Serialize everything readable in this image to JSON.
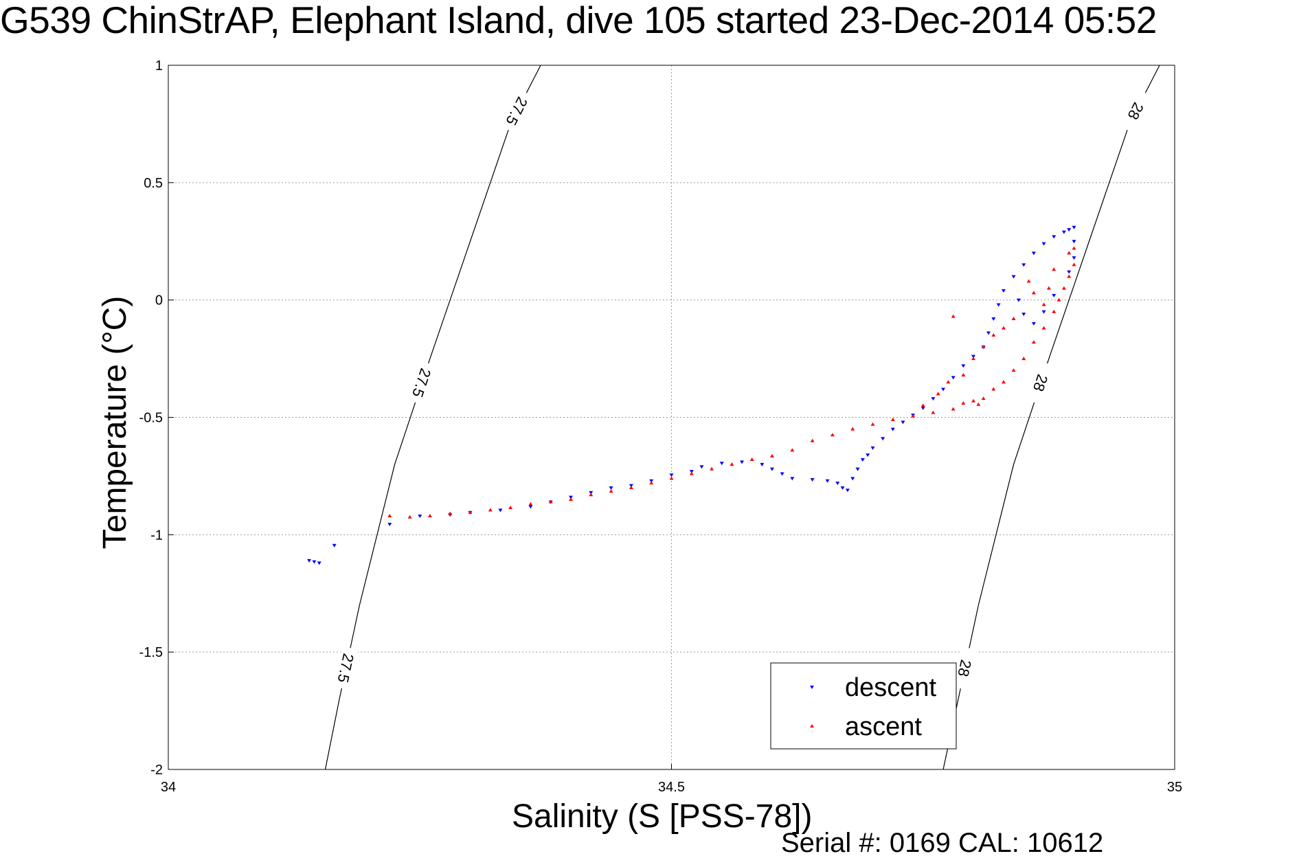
{
  "chart_data": {
    "type": "scatter",
    "title": "G539 ChinStrAP, Elephant Island, dive 105 started 23-Dec-2014 05:52",
    "xlabel": "Salinity (S [PSS-78])",
    "ylabel": "Temperature (°C)",
    "footer": "Serial #: 0169 CAL: 10612",
    "xlim": [
      34,
      35
    ],
    "ylim": [
      -2,
      1
    ],
    "xticks": [
      34,
      34.5,
      35
    ],
    "xtick_labels": [
      "34",
      "34.5",
      "35"
    ],
    "yticks": [
      1,
      0.5,
      0,
      -0.5,
      -1,
      -1.5,
      -2
    ],
    "ytick_labels": [
      "1",
      "0.5",
      "0",
      "-0.5",
      "-1",
      "-1.5",
      "-2"
    ],
    "grid": true,
    "legend_position": "bottom-right",
    "contours": [
      {
        "label": "27.5",
        "points": [
          [
            34.156,
            -2.0
          ],
          [
            34.17,
            -1.7
          ],
          [
            34.19,
            -1.3
          ],
          [
            34.225,
            -0.7
          ],
          [
            34.26,
            -0.25
          ],
          [
            34.3,
            0.25
          ],
          [
            34.34,
            0.75
          ],
          [
            34.37,
            1.0
          ]
        ]
      },
      {
        "label": "28",
        "points": [
          [
            34.77,
            -2.0
          ],
          [
            34.785,
            -1.7
          ],
          [
            34.805,
            -1.3
          ],
          [
            34.84,
            -0.7
          ],
          [
            34.875,
            -0.25
          ],
          [
            34.915,
            0.25
          ],
          [
            34.955,
            0.75
          ],
          [
            34.985,
            1.0
          ]
        ]
      }
    ],
    "contour_label_values": [
      "27.5",
      "27.5",
      "27.5",
      "28",
      "28",
      "28"
    ],
    "series": [
      {
        "name": "descent",
        "color": "#0000ff",
        "marker": "triangle-down",
        "points": [
          [
            34.14,
            -1.11
          ],
          [
            34.145,
            -1.115
          ],
          [
            34.15,
            -1.12
          ],
          [
            34.165,
            -1.045
          ],
          [
            34.22,
            -0.955
          ],
          [
            34.25,
            -0.92
          ],
          [
            34.28,
            -0.915
          ],
          [
            34.3,
            -0.905
          ],
          [
            34.33,
            -0.895
          ],
          [
            34.36,
            -0.88
          ],
          [
            34.38,
            -0.86
          ],
          [
            34.4,
            -0.84
          ],
          [
            34.42,
            -0.82
          ],
          [
            34.44,
            -0.8
          ],
          [
            34.46,
            -0.79
          ],
          [
            34.48,
            -0.77
          ],
          [
            34.5,
            -0.745
          ],
          [
            34.52,
            -0.73
          ],
          [
            34.53,
            -0.71
          ],
          [
            34.55,
            -0.695
          ],
          [
            34.57,
            -0.69
          ],
          [
            34.59,
            -0.7
          ],
          [
            34.6,
            -0.72
          ],
          [
            34.61,
            -0.74
          ],
          [
            34.62,
            -0.76
          ],
          [
            34.64,
            -0.765
          ],
          [
            34.655,
            -0.77
          ],
          [
            34.665,
            -0.78
          ],
          [
            34.67,
            -0.8
          ],
          [
            34.675,
            -0.81
          ],
          [
            34.68,
            -0.76
          ],
          [
            34.685,
            -0.72
          ],
          [
            34.69,
            -0.68
          ],
          [
            34.695,
            -0.66
          ],
          [
            34.7,
            -0.63
          ],
          [
            34.71,
            -0.59
          ],
          [
            34.72,
            -0.55
          ],
          [
            34.73,
            -0.52
          ],
          [
            34.74,
            -0.49
          ],
          [
            34.75,
            -0.46
          ],
          [
            34.76,
            -0.42
          ],
          [
            34.77,
            -0.38
          ],
          [
            34.78,
            -0.33
          ],
          [
            34.79,
            -0.28
          ],
          [
            34.8,
            -0.24
          ],
          [
            34.81,
            -0.2
          ],
          [
            34.815,
            -0.14
          ],
          [
            34.82,
            -0.08
          ],
          [
            34.825,
            -0.02
          ],
          [
            34.83,
            0.04
          ],
          [
            34.84,
            0.1
          ],
          [
            34.85,
            0.15
          ],
          [
            34.86,
            0.2
          ],
          [
            34.87,
            0.24
          ],
          [
            34.88,
            0.27
          ],
          [
            34.89,
            0.29
          ],
          [
            34.895,
            0.3
          ],
          [
            34.9,
            0.31
          ],
          [
            34.9,
            0.25
          ],
          [
            34.9,
            0.18
          ],
          [
            34.895,
            0.12
          ],
          [
            34.88,
            0.02
          ],
          [
            34.87,
            -0.05
          ],
          [
            34.86,
            -0.1
          ],
          [
            34.85,
            -0.06
          ],
          [
            34.845,
            0.0
          ]
        ]
      },
      {
        "name": "ascent",
        "color": "#ff0000",
        "marker": "triangle-up",
        "points": [
          [
            34.22,
            -0.92
          ],
          [
            34.24,
            -0.925
          ],
          [
            34.26,
            -0.92
          ],
          [
            34.28,
            -0.91
          ],
          [
            34.3,
            -0.905
          ],
          [
            34.32,
            -0.895
          ],
          [
            34.34,
            -0.885
          ],
          [
            34.36,
            -0.87
          ],
          [
            34.38,
            -0.86
          ],
          [
            34.4,
            -0.85
          ],
          [
            34.42,
            -0.83
          ],
          [
            34.44,
            -0.815
          ],
          [
            34.46,
            -0.8
          ],
          [
            34.48,
            -0.78
          ],
          [
            34.5,
            -0.76
          ],
          [
            34.52,
            -0.74
          ],
          [
            34.54,
            -0.72
          ],
          [
            34.56,
            -0.7
          ],
          [
            34.58,
            -0.68
          ],
          [
            34.6,
            -0.665
          ],
          [
            34.62,
            -0.64
          ],
          [
            34.64,
            -0.6
          ],
          [
            34.66,
            -0.575
          ],
          [
            34.68,
            -0.55
          ],
          [
            34.7,
            -0.53
          ],
          [
            34.72,
            -0.51
          ],
          [
            34.74,
            -0.495
          ],
          [
            34.76,
            -0.48
          ],
          [
            34.78,
            -0.465
          ],
          [
            34.79,
            -0.44
          ],
          [
            34.8,
            -0.43
          ],
          [
            34.805,
            -0.445
          ],
          [
            34.81,
            -0.42
          ],
          [
            34.82,
            -0.38
          ],
          [
            34.83,
            -0.35
          ],
          [
            34.84,
            -0.3
          ],
          [
            34.85,
            -0.25
          ],
          [
            34.86,
            -0.18
          ],
          [
            34.87,
            -0.12
          ],
          [
            34.88,
            -0.05
          ],
          [
            34.885,
            0.0
          ],
          [
            34.89,
            0.05
          ],
          [
            34.895,
            0.1
          ],
          [
            34.9,
            0.15
          ],
          [
            34.9,
            0.22
          ],
          [
            34.895,
            0.2
          ],
          [
            34.88,
            0.13
          ],
          [
            34.875,
            0.05
          ],
          [
            34.87,
            -0.02
          ],
          [
            34.86,
            0.03
          ],
          [
            34.855,
            0.08
          ],
          [
            34.84,
            -0.08
          ],
          [
            34.83,
            -0.12
          ],
          [
            34.82,
            -0.15
          ],
          [
            34.81,
            -0.2
          ],
          [
            34.8,
            -0.25
          ],
          [
            34.79,
            -0.32
          ],
          [
            34.78,
            -0.07
          ],
          [
            34.775,
            -0.35
          ],
          [
            34.765,
            -0.4
          ],
          [
            34.75,
            -0.45
          ]
        ]
      }
    ]
  }
}
